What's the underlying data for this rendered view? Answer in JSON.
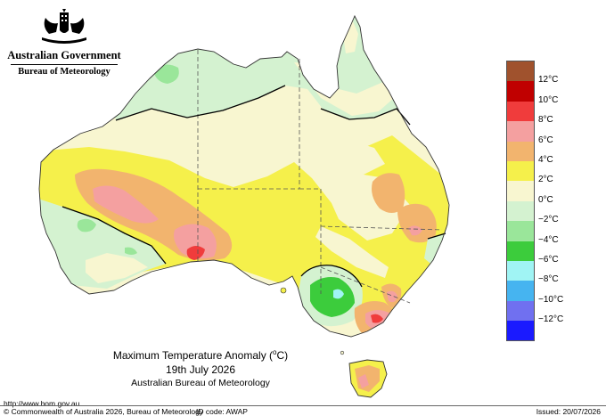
{
  "header": {
    "government": "Australian Government",
    "bureau": "Bureau of Meteorology"
  },
  "map": {
    "title_prefix": "Maximum Temperature Anomaly (",
    "title_unit": "o",
    "title_suffix": "C)",
    "date": "19th July 2026",
    "organisation": "Australian Bureau of Meteorology"
  },
  "legend": {
    "unit_symbol": "°C",
    "levels": [
      {
        "value": "12",
        "color": "#a0522d"
      },
      {
        "value": "10",
        "color": "#c00000"
      },
      {
        "value": "8",
        "color": "#f03c3c"
      },
      {
        "value": "6",
        "color": "#f4a0a0"
      },
      {
        "value": "4",
        "color": "#f2b46e"
      },
      {
        "value": "2",
        "color": "#f5f04b"
      },
      {
        "value": "0",
        "color": "#f8f6d0"
      },
      {
        "value": "-2",
        "color": "#d4f2d0"
      },
      {
        "value": "-4",
        "color": "#9ae69a"
      },
      {
        "value": "-6",
        "color": "#3ccc3c"
      },
      {
        "value": "-8",
        "color": "#a0f4f4"
      },
      {
        "value": "-10",
        "color": "#46b4f0"
      },
      {
        "value": "-12",
        "color": "#7070f0"
      },
      {
        "value": "",
        "color": "#1a1aff"
      }
    ],
    "labels": [
      "12°C",
      "10°C",
      "8°C",
      "6°C",
      "4°C",
      "2°C",
      "0°C",
      "−2°C",
      "−4°C",
      "−6°C",
      "−8°C",
      "−10°C",
      "−12°C"
    ]
  },
  "footer": {
    "url": "http://www.bom.gov.au",
    "copyright": "© Commonwealth of Australia 2026, Bureau of Meteorology",
    "id_code": "ID code: AWAP",
    "issued": "Issued: 20/07/2026"
  },
  "colors": {
    "cool_light": "#d4f2d0",
    "cool": "#9ae69a",
    "cold": "#3ccc3c",
    "neutral": "#f8f6d0",
    "warm": "#f5f04b",
    "warmer": "#f2b46e",
    "hot": "#f4a0a0",
    "hottest": "#f03c3c"
  }
}
